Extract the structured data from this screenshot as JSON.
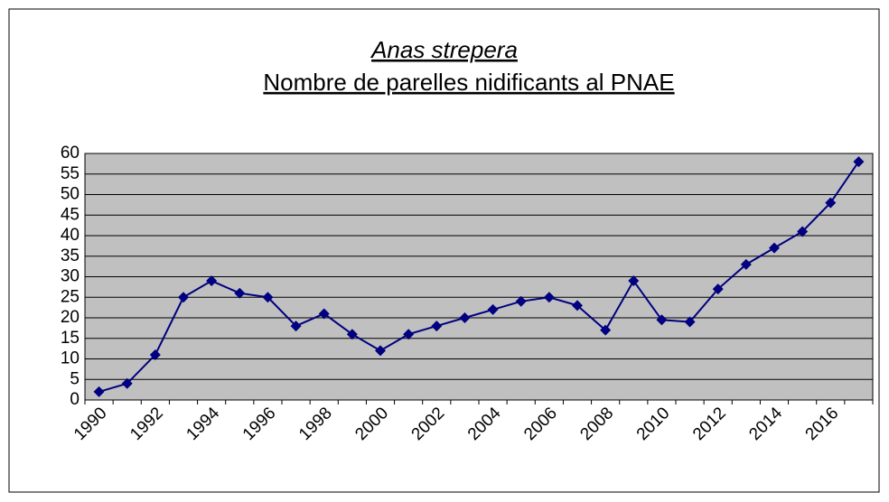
{
  "chart_data": {
    "type": "line",
    "title": "Anas strepera",
    "subtitle": "Nombre de parelles nidificants al PNAE",
    "categories": [
      "1990",
      null,
      "1992",
      null,
      "1994",
      null,
      "1996",
      null,
      "1998",
      null,
      "2000",
      null,
      "2002",
      null,
      "2004",
      null,
      "2006",
      null,
      "2008",
      null,
      "2010",
      null,
      "2012",
      null,
      "2014",
      null,
      "2016",
      null
    ],
    "values": [
      2,
      4,
      11,
      25,
      29,
      26,
      25,
      18,
      21,
      16,
      12,
      16,
      18,
      20,
      22,
      24,
      25,
      23,
      17,
      29,
      19.5,
      19,
      27,
      33,
      37,
      41,
      48,
      58
    ],
    "color": "#000080",
    "ylim": [
      0,
      60
    ],
    "yticks": [
      0,
      5,
      10,
      15,
      20,
      25,
      30,
      35,
      40,
      45,
      50,
      55,
      60
    ],
    "grid": true
  }
}
